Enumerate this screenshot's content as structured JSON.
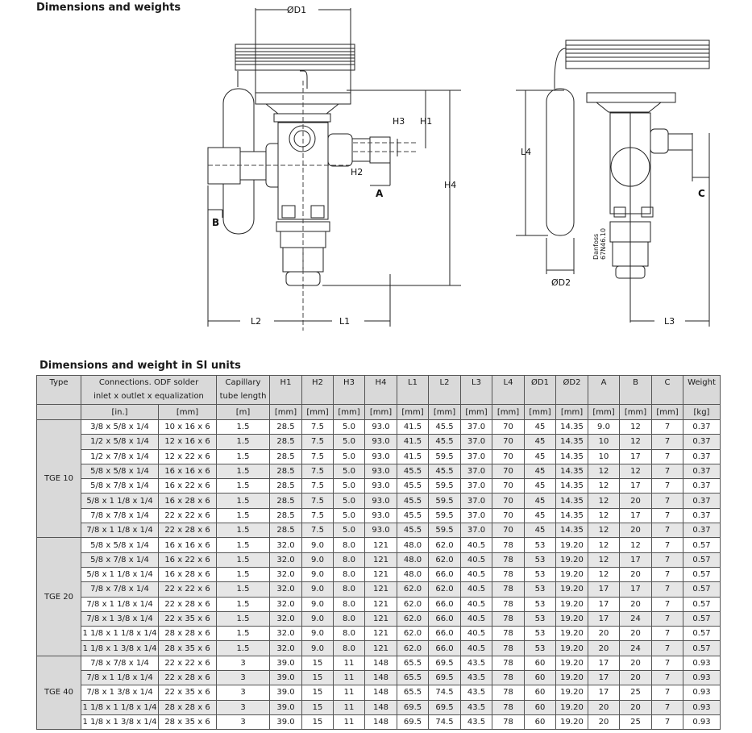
{
  "headings": {
    "drawing": "Dimensions and weights",
    "table": "Dimensions and weight in SI units"
  },
  "drawing_labels": {
    "d1": "ØD1",
    "h1": "H1",
    "h2": "H2",
    "h3": "H3",
    "h4": "H4",
    "a": "A",
    "b": "B",
    "c": "C",
    "l1": "L1",
    "l2": "L2",
    "l3": "L3",
    "l4": "L4",
    "d2": "ØD2",
    "mark1": "Danfoss",
    "mark2": "67N46.10"
  },
  "table": {
    "header": {
      "type": "Type",
      "connections": "Connections. ODF solder",
      "connections2": "inlet x outlet x equalization",
      "capillary": "Capillary",
      "capillary2": "tube length",
      "cols": [
        "H1",
        "H2",
        "H3",
        "H4",
        "L1",
        "L2",
        "L3",
        "L4",
        "ØD1",
        "ØD2",
        "A",
        "B",
        "C",
        "Weight"
      ]
    },
    "units": [
      "[in.]",
      "[mm]",
      "[m]",
      "[mm]",
      "[mm]",
      "[mm]",
      "[mm]",
      "[mm]",
      "[mm]",
      "[mm]",
      "[mm]",
      "[mm]",
      "[mm]",
      "[mm]",
      "[mm]",
      "[mm]",
      "[kg]"
    ],
    "groups": [
      {
        "type": "TGE 10",
        "rows": [
          [
            "3/8 x 5/8 x 1/4",
            "10 x 16 x 6",
            "1.5",
            "28.5",
            "7.5",
            "5.0",
            "93.0",
            "41.5",
            "45.5",
            "37.0",
            "70",
            "45",
            "14.35",
            "9.0",
            "12",
            "7",
            "0.37"
          ],
          [
            "1/2 x 5/8 x 1/4",
            "12 x 16 x 6",
            "1.5",
            "28.5",
            "7.5",
            "5.0",
            "93.0",
            "41.5",
            "45.5",
            "37.0",
            "70",
            "45",
            "14.35",
            "10",
            "12",
            "7",
            "0.37"
          ],
          [
            "1/2 x 7/8 x 1/4",
            "12 x 22 x 6",
            "1.5",
            "28.5",
            "7.5",
            "5.0",
            "93.0",
            "41.5",
            "59.5",
            "37.0",
            "70",
            "45",
            "14.35",
            "10",
            "17",
            "7",
            "0.37"
          ],
          [
            "5/8 x 5/8 x 1/4",
            "16 x 16 x 6",
            "1.5",
            "28.5",
            "7.5",
            "5.0",
            "93.0",
            "45.5",
            "45.5",
            "37.0",
            "70",
            "45",
            "14.35",
            "12",
            "12",
            "7",
            "0.37"
          ],
          [
            "5/8 x 7/8 x 1/4",
            "16 x 22 x 6",
            "1.5",
            "28.5",
            "7.5",
            "5.0",
            "93.0",
            "45.5",
            "59.5",
            "37.0",
            "70",
            "45",
            "14.35",
            "12",
            "17",
            "7",
            "0.37"
          ],
          [
            "5/8 x 1 1/8 x 1/4",
            "16 x 28 x 6",
            "1.5",
            "28.5",
            "7.5",
            "5.0",
            "93.0",
            "45.5",
            "59.5",
            "37.0",
            "70",
            "45",
            "14.35",
            "12",
            "20",
            "7",
            "0.37"
          ],
          [
            "7/8 x 7/8 x 1/4",
            "22 x 22 x 6",
            "1.5",
            "28.5",
            "7.5",
            "5.0",
            "93.0",
            "45.5",
            "59.5",
            "37.0",
            "70",
            "45",
            "14.35",
            "12",
            "17",
            "7",
            "0.37"
          ],
          [
            "7/8 x 1 1/8 x 1/4",
            "22 x 28 x 6",
            "1.5",
            "28.5",
            "7.5",
            "5.0",
            "93.0",
            "45.5",
            "59.5",
            "37.0",
            "70",
            "45",
            "14.35",
            "12",
            "20",
            "7",
            "0.37"
          ]
        ]
      },
      {
        "type": "TGE 20",
        "rows": [
          [
            "5/8 x 5/8 x 1/4",
            "16 x 16 x 6",
            "1.5",
            "32.0",
            "9.0",
            "8.0",
            "121",
            "48.0",
            "62.0",
            "40.5",
            "78",
            "53",
            "19.20",
            "12",
            "12",
            "7",
            "0.57"
          ],
          [
            "5/8 x 7/8 x 1/4",
            "16 x 22 x 6",
            "1.5",
            "32.0",
            "9.0",
            "8.0",
            "121",
            "48.0",
            "62.0",
            "40.5",
            "78",
            "53",
            "19.20",
            "12",
            "17",
            "7",
            "0.57"
          ],
          [
            "5/8 x 1 1/8 x 1/4",
            "16 x 28 x 6",
            "1.5",
            "32.0",
            "9.0",
            "8.0",
            "121",
            "48.0",
            "66.0",
            "40.5",
            "78",
            "53",
            "19.20",
            "12",
            "20",
            "7",
            "0.57"
          ],
          [
            "7/8 x 7/8 x 1/4",
            "22 x 22 x 6",
            "1.5",
            "32.0",
            "9.0",
            "8.0",
            "121",
            "62.0",
            "62.0",
            "40.5",
            "78",
            "53",
            "19.20",
            "17",
            "17",
            "7",
            "0.57"
          ],
          [
            "7/8 x 1 1/8 x 1/4",
            "22 x 28 x 6",
            "1.5",
            "32.0",
            "9.0",
            "8.0",
            "121",
            "62.0",
            "66.0",
            "40.5",
            "78",
            "53",
            "19.20",
            "17",
            "20",
            "7",
            "0.57"
          ],
          [
            "7/8 x 1 3/8 x 1/4",
            "22 x 35 x 6",
            "1.5",
            "32.0",
            "9.0",
            "8.0",
            "121",
            "62.0",
            "66.0",
            "40.5",
            "78",
            "53",
            "19.20",
            "17",
            "24",
            "7",
            "0.57"
          ],
          [
            "1 1/8 x 1 1/8 x 1/4",
            "28 x 28 x 6",
            "1.5",
            "32.0",
            "9.0",
            "8.0",
            "121",
            "62.0",
            "66.0",
            "40.5",
            "78",
            "53",
            "19.20",
            "20",
            "20",
            "7",
            "0.57"
          ],
          [
            "1 1/8 x 1 3/8 x 1/4",
            "28 x 35 x 6",
            "1.5",
            "32.0",
            "9.0",
            "8.0",
            "121",
            "62.0",
            "66.0",
            "40.5",
            "78",
            "53",
            "19.20",
            "20",
            "24",
            "7",
            "0.57"
          ]
        ]
      },
      {
        "type": "TGE 40",
        "rows": [
          [
            "7/8 x 7/8 x 1/4",
            "22 x 22 x 6",
            "3",
            "39.0",
            "15",
            "11",
            "148",
            "65.5",
            "69.5",
            "43.5",
            "78",
            "60",
            "19.20",
            "17",
            "20",
            "7",
            "0.93"
          ],
          [
            "7/8 x 1 1/8 x 1/4",
            "22 x 28 x 6",
            "3",
            "39.0",
            "15",
            "11",
            "148",
            "65.5",
            "69.5",
            "43.5",
            "78",
            "60",
            "19.20",
            "17",
            "20",
            "7",
            "0.93"
          ],
          [
            "7/8 x 1 3/8 x 1/4",
            "22 x 35 x 6",
            "3",
            "39.0",
            "15",
            "11",
            "148",
            "65.5",
            "74.5",
            "43.5",
            "78",
            "60",
            "19.20",
            "17",
            "25",
            "7",
            "0.93"
          ],
          [
            "1 1/8 x 1 1/8 x 1/4",
            "28 x 28 x 6",
            "3",
            "39.0",
            "15",
            "11",
            "148",
            "69.5",
            "69.5",
            "43.5",
            "78",
            "60",
            "19.20",
            "20",
            "20",
            "7",
            "0.93"
          ],
          [
            "1 1/8 x 1 3/8 x 1/4",
            "28 x 35 x 6",
            "3",
            "39.0",
            "15",
            "11",
            "148",
            "69.5",
            "74.5",
            "43.5",
            "78",
            "60",
            "19.20",
            "20",
            "25",
            "7",
            "0.93"
          ]
        ]
      }
    ]
  }
}
